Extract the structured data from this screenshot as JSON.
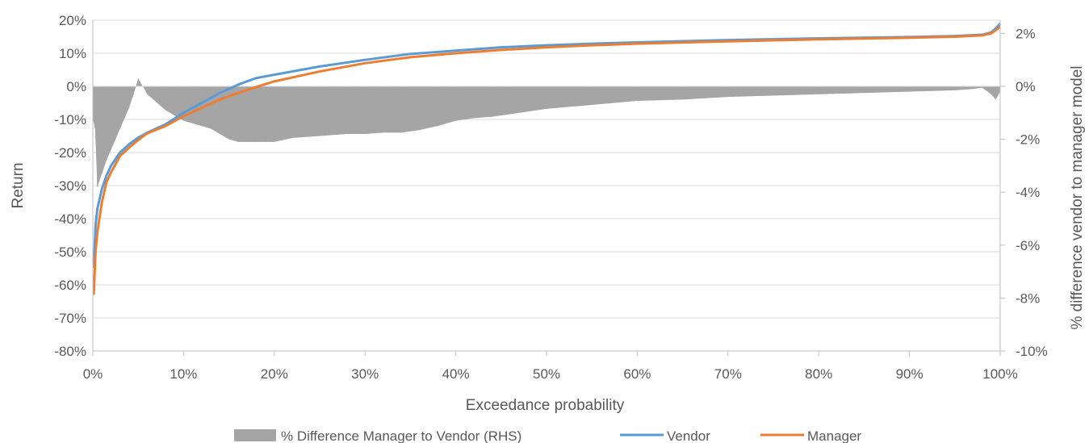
{
  "chart_data": {
    "type": "line",
    "title": "",
    "xlabel": "Exceedance probability",
    "ylabel": "Return",
    "y2label": "% difference vendor to manager model",
    "xlim": [
      0,
      100
    ],
    "ylim": [
      -80,
      20
    ],
    "y2lim": [
      -10,
      2.5
    ],
    "x_ticks": [
      "0%",
      "10%",
      "20%",
      "30%",
      "40%",
      "50%",
      "60%",
      "70%",
      "80%",
      "90%",
      "100%"
    ],
    "y_ticks": [
      "20%",
      "10%",
      "0%",
      "-10%",
      "-20%",
      "-30%",
      "-40%",
      "-50%",
      "-60%",
      "-70%",
      "-80%"
    ],
    "y2_ticks": [
      "2%",
      "0%",
      "-2%",
      "-4%",
      "-6%",
      "-8%",
      "-10%"
    ],
    "grid": "horizontal",
    "legend_position": "bottom",
    "colors": {
      "vendor": "#5b9bd5",
      "manager": "#ed7d31",
      "difference": "#a5a5a5"
    },
    "series": [
      {
        "name": "% Difference Manager to Vendor (RHS)",
        "kind": "bar",
        "axis": "right",
        "x": [
          0.2,
          0.5,
          1,
          1.5,
          2,
          2.5,
          3,
          3.5,
          4,
          4.5,
          5,
          5.5,
          6,
          7,
          8,
          9,
          10,
          11,
          12,
          13,
          14,
          15,
          16,
          17,
          18,
          19,
          20,
          22,
          24,
          26,
          28,
          30,
          32,
          34,
          36,
          38,
          40,
          42,
          44,
          46,
          48,
          50,
          55,
          60,
          65,
          70,
          75,
          80,
          85,
          90,
          95,
          97,
          98,
          99,
          99.5,
          100
        ],
        "values": [
          -1.2,
          -3.8,
          -3.3,
          -2.8,
          -2.4,
          -2.0,
          -1.6,
          -1.2,
          -0.8,
          -0.3,
          0.3,
          0.0,
          -0.3,
          -0.6,
          -0.9,
          -1.1,
          -1.3,
          -1.4,
          -1.5,
          -1.6,
          -1.8,
          -2.0,
          -2.1,
          -2.1,
          -2.1,
          -2.1,
          -2.1,
          -1.95,
          -1.9,
          -1.85,
          -1.8,
          -1.8,
          -1.75,
          -1.75,
          -1.65,
          -1.5,
          -1.3,
          -1.2,
          -1.15,
          -1.05,
          -0.95,
          -0.85,
          -0.7,
          -0.55,
          -0.5,
          -0.4,
          -0.35,
          -0.3,
          -0.25,
          -0.2,
          -0.15,
          -0.1,
          -0.05,
          -0.3,
          -0.5,
          -0.2
        ]
      },
      {
        "name": "Vendor",
        "kind": "line",
        "axis": "left",
        "x": [
          0.1,
          0.3,
          0.5,
          1,
          1.5,
          2,
          3,
          4,
          5,
          6,
          8,
          10,
          12,
          14,
          16,
          18,
          20,
          25,
          30,
          35,
          40,
          45,
          50,
          55,
          60,
          70,
          80,
          90,
          95,
          98,
          99,
          99.5,
          100
        ],
        "values": [
          -55,
          -42,
          -37,
          -31,
          -27,
          -24,
          -20,
          -17.5,
          -15.5,
          -14,
          -11.5,
          -8,
          -5,
          -2,
          0.5,
          2.5,
          3.5,
          6,
          8,
          9.8,
          10.8,
          11.8,
          12.4,
          12.9,
          13.3,
          14,
          14.5,
          14.9,
          15.2,
          15.6,
          16.3,
          17.5,
          19
        ]
      },
      {
        "name": "Manager",
        "kind": "line",
        "axis": "left",
        "x": [
          0.1,
          0.3,
          0.5,
          1,
          1.5,
          2,
          3,
          4,
          5,
          6,
          8,
          10,
          12,
          14,
          16,
          18,
          20,
          25,
          30,
          35,
          40,
          45,
          50,
          55,
          60,
          70,
          80,
          90,
          95,
          98,
          99,
          99.5,
          100
        ],
        "values": [
          -63,
          -50,
          -44,
          -35,
          -29,
          -26,
          -21,
          -18.5,
          -16.2,
          -14.2,
          -12,
          -9,
          -6.5,
          -4,
          -2,
          -0.2,
          1.5,
          4.5,
          7,
          8.8,
          10,
          11,
          11.8,
          12.4,
          12.9,
          13.6,
          14.2,
          14.7,
          15,
          15.4,
          16,
          17,
          18
        ]
      }
    ]
  }
}
